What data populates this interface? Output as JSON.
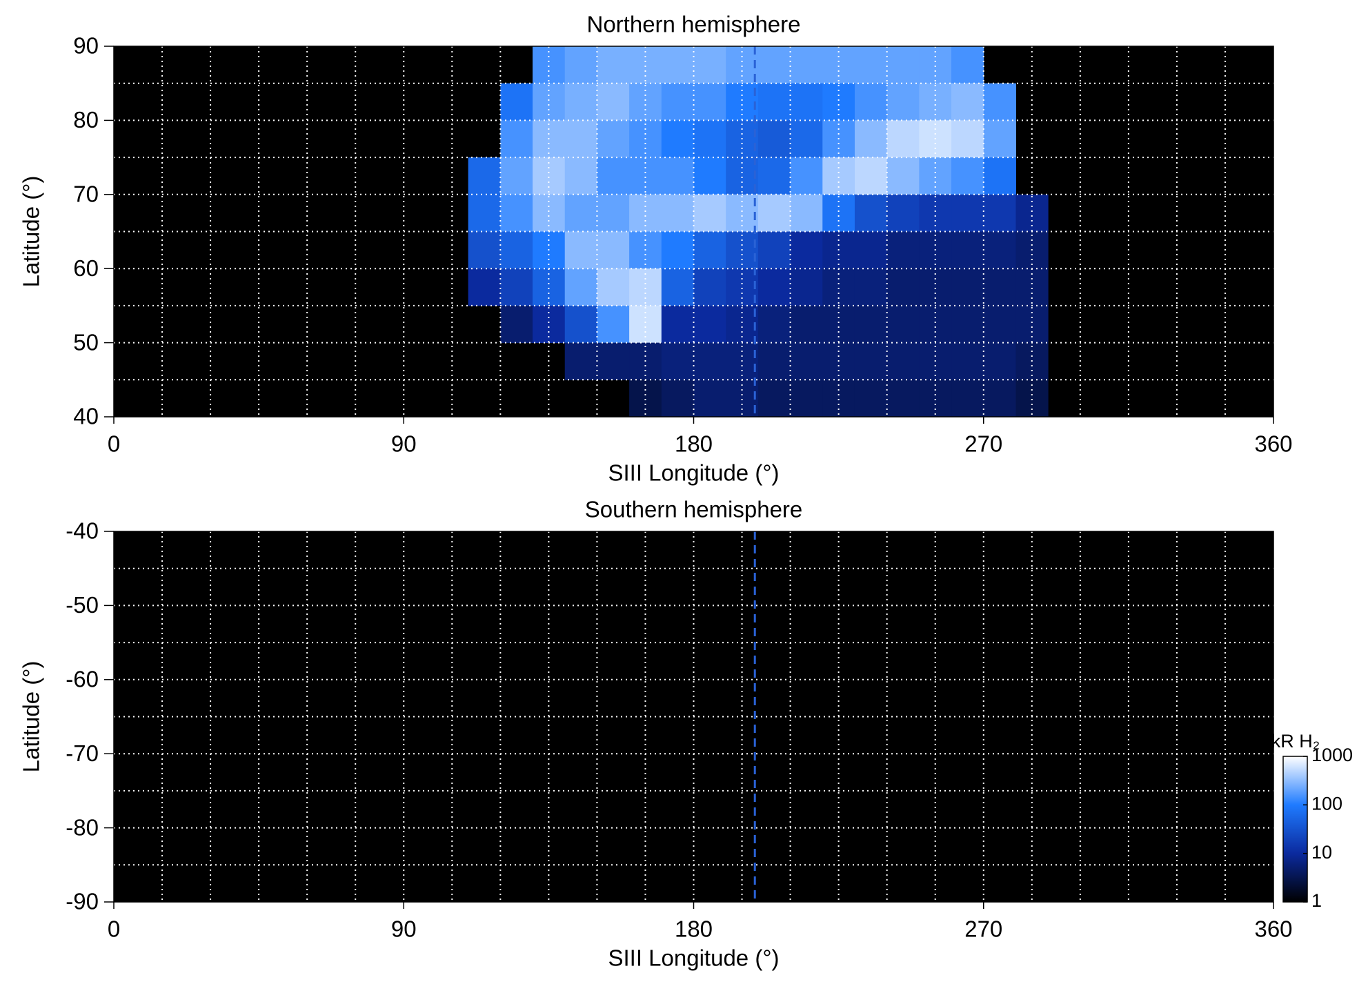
{
  "chart_data": [
    {
      "type": "heatmap",
      "title": "Northern hemisphere",
      "xlabel": "SIII Longitude (°)",
      "ylabel": "Latitude (°)",
      "xlim": [
        0,
        360
      ],
      "xticks": [
        0,
        90,
        180,
        270,
        360
      ],
      "ylim": [
        40,
        90
      ],
      "yticks": [
        40,
        50,
        60,
        70,
        80,
        90
      ],
      "grid": true,
      "grid_color": "#ffffff",
      "xgrid": [
        15,
        30,
        45,
        60,
        75,
        90,
        105,
        120,
        135,
        150,
        165,
        180,
        195,
        210,
        225,
        240,
        255,
        270,
        285,
        300,
        315,
        330,
        345
      ],
      "ygrid": [
        45,
        50,
        55,
        60,
        65,
        70,
        75,
        80,
        85
      ],
      "background": "#000000",
      "xbins": [
        110,
        120,
        130,
        140,
        150,
        160,
        170,
        180,
        190,
        200,
        210,
        220,
        230,
        240,
        250,
        260,
        270,
        280,
        290
      ],
      "ybins": [
        90,
        85,
        80,
        75,
        70,
        65,
        60,
        55,
        50,
        45,
        40
      ],
      "z": [
        [
          null,
          null,
          150,
          200,
          250,
          250,
          250,
          250,
          200,
          200,
          200,
          200,
          200,
          200,
          200,
          150,
          null,
          null
        ],
        [
          null,
          80,
          200,
          250,
          300,
          200,
          150,
          150,
          100,
          80,
          80,
          100,
          150,
          200,
          250,
          300,
          150,
          null
        ],
        [
          null,
          150,
          300,
          300,
          200,
          150,
          100,
          80,
          50,
          40,
          60,
          150,
          300,
          500,
          600,
          500,
          200,
          null
        ],
        [
          60,
          200,
          400,
          300,
          150,
          150,
          150,
          100,
          50,
          60,
          150,
          400,
          500,
          300,
          200,
          150,
          80,
          null
        ],
        [
          60,
          150,
          300,
          200,
          200,
          300,
          300,
          400,
          300,
          400,
          300,
          80,
          30,
          20,
          15,
          15,
          15,
          8
        ],
        [
          30,
          50,
          100,
          300,
          300,
          150,
          100,
          50,
          30,
          20,
          10,
          8,
          8,
          6,
          6,
          6,
          6,
          5
        ],
        [
          10,
          20,
          50,
          200,
          400,
          500,
          50,
          20,
          15,
          10,
          8,
          6,
          6,
          5,
          5,
          5,
          5,
          5
        ],
        [
          null,
          5,
          10,
          30,
          150,
          600,
          10,
          10,
          8,
          6,
          5,
          5,
          5,
          5,
          5,
          5,
          5,
          5
        ],
        [
          null,
          null,
          null,
          5,
          5,
          5,
          6,
          6,
          6,
          5,
          5,
          5,
          5,
          5,
          5,
          5,
          5,
          4
        ],
        [
          null,
          null,
          null,
          null,
          null,
          3,
          4,
          5,
          5,
          4,
          4,
          4,
          4,
          4,
          4,
          4,
          4,
          3
        ]
      ],
      "vline": 199,
      "vline_color": "#2a62d6"
    },
    {
      "type": "heatmap",
      "title": "Southern hemisphere",
      "xlabel": "SIII Longitude (°)",
      "ylabel": "Latitude (°)",
      "xlim": [
        0,
        360
      ],
      "xticks": [
        0,
        90,
        180,
        270,
        360
      ],
      "ylim": [
        -90,
        -40
      ],
      "yticks": [
        -90,
        -80,
        -70,
        -60,
        -50,
        -40
      ],
      "grid": true,
      "grid_color": "#ffffff",
      "xgrid": [
        15,
        30,
        45,
        60,
        75,
        90,
        105,
        120,
        135,
        150,
        165,
        180,
        195,
        210,
        225,
        240,
        255,
        270,
        285,
        300,
        315,
        330,
        345
      ],
      "ygrid": [
        -85,
        -80,
        -75,
        -70,
        -65,
        -60,
        -55,
        -50,
        -45
      ],
      "background": "#000000",
      "vline": 199,
      "vline_color": "#2a62d6",
      "colorbar": {
        "label": "kR H₂",
        "scale": "log",
        "lim": [
          1,
          1000
        ],
        "ticks": [
          1,
          10,
          100,
          1000
        ],
        "colors": [
          "#000000",
          "#0b2a9e",
          "#1f7bff",
          "#ffffff"
        ]
      }
    }
  ]
}
